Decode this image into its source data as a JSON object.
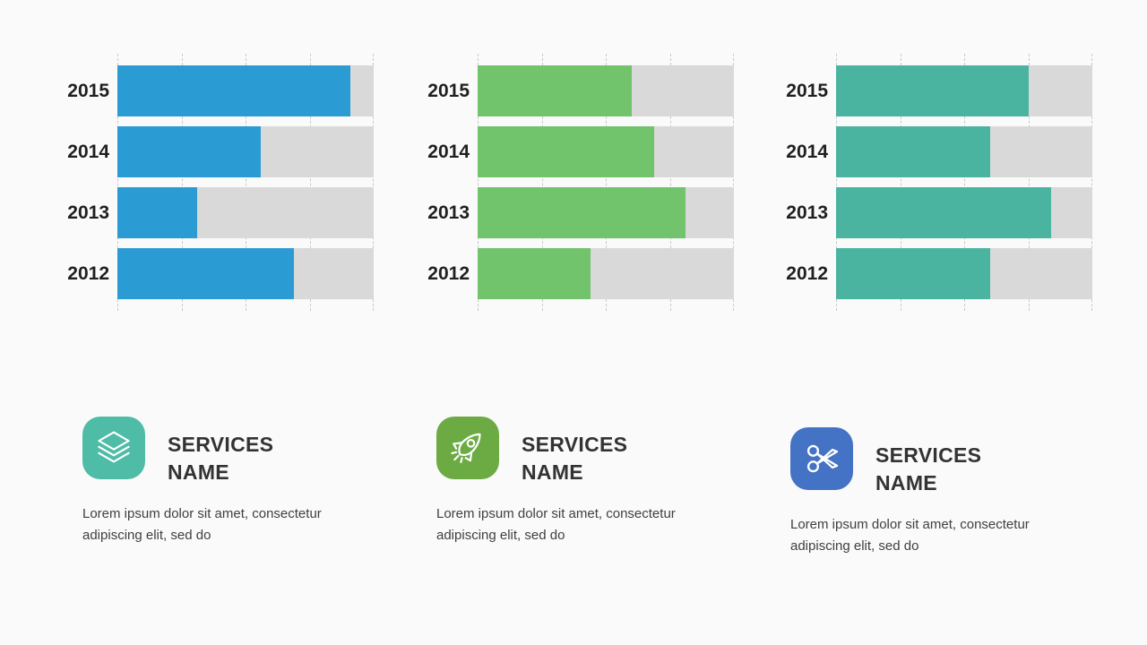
{
  "background_color": "#FAFAFA",
  "chart_data": [
    {
      "type": "bar",
      "orientation": "horizontal",
      "title": "",
      "xlabel": "",
      "ylabel": "",
      "categories": [
        "2015",
        "2014",
        "2013",
        "2012"
      ],
      "values": [
        91,
        56,
        31,
        69
      ],
      "value_unit": "percent_of_track",
      "xlim": [
        0,
        100
      ],
      "grid": "dashed-vertical",
      "gridline_positions": [
        0,
        25,
        50,
        75,
        100
      ],
      "legend": null,
      "bar_color": "#2B9CD3",
      "track_color": "#D9D9D9",
      "gridline_color": "#C9C9C9",
      "label_color": "#1F1F1F"
    },
    {
      "type": "bar",
      "orientation": "horizontal",
      "title": "",
      "xlabel": "",
      "ylabel": "",
      "categories": [
        "2015",
        "2014",
        "2013",
        "2012"
      ],
      "values": [
        60,
        69,
        81,
        44
      ],
      "value_unit": "percent_of_track",
      "xlim": [
        0,
        100
      ],
      "grid": "dashed-vertical",
      "gridline_positions": [
        0,
        25,
        50,
        75,
        100
      ],
      "legend": null,
      "bar_color": "#71C36C",
      "track_color": "#D9D9D9",
      "gridline_color": "#C9C9C9",
      "label_color": "#1F1F1F"
    },
    {
      "type": "bar",
      "orientation": "horizontal",
      "title": "",
      "xlabel": "",
      "ylabel": "",
      "categories": [
        "2015",
        "2014",
        "2013",
        "2012"
      ],
      "values": [
        75,
        60,
        84,
        60
      ],
      "value_unit": "percent_of_track",
      "xlim": [
        0,
        100
      ],
      "grid": "dashed-vertical",
      "gridline_positions": [
        0,
        25,
        50,
        75,
        100
      ],
      "legend": null,
      "bar_color": "#4BB4A1",
      "track_color": "#D9D9D9",
      "gridline_color": "#C9C9C9",
      "label_color": "#1F1F1F"
    }
  ],
  "services": [
    {
      "title": "SERVICES NAME",
      "description": "Lorem ipsum dolor sit amet, consectetur adipiscing elit, sed do",
      "icon": "layers-icon",
      "icon_color": "#4EBCA7"
    },
    {
      "title": "SERVICES NAME",
      "description": "Lorem ipsum dolor sit amet, consectetur adipiscing elit, sed do",
      "icon": "rocket-icon",
      "icon_color": "#6CAB43"
    },
    {
      "title": "SERVICES NAME",
      "description": "Lorem ipsum dolor sit amet, consectetur adipiscing elit, sed do",
      "icon": "scissors-icon",
      "icon_color": "#4472C4"
    }
  ],
  "text_colors": {
    "title": "#333333",
    "body": "#3F3F3F"
  }
}
